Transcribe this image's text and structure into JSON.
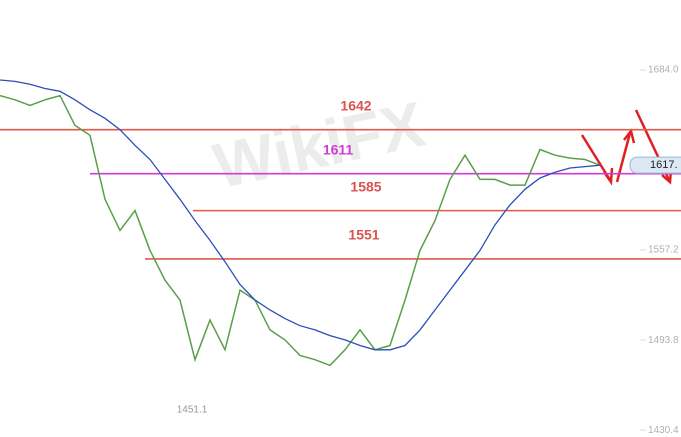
{
  "chart_data": {
    "type": "line",
    "watermark": "WikiFX",
    "categories": [
      null,
      null,
      null,
      null,
      null,
      null,
      null,
      null,
      null,
      null,
      null,
      null,
      null,
      null,
      null,
      null,
      null,
      null,
      null,
      null,
      null,
      null,
      null,
      null,
      null,
      null,
      null,
      null,
      null,
      null,
      null,
      null,
      null,
      null,
      null,
      null,
      null,
      null,
      null,
      null,
      null
    ],
    "series": [
      {
        "color": "#5a9e4a",
        "values": [
          1666,
          1663,
          1659,
          1663,
          1666,
          1645,
          1638,
          1593,
          1571,
          1585,
          1557,
          1536,
          1522,
          1480,
          1508,
          1487,
          1529,
          1522,
          1501,
          1494,
          1483,
          1480,
          1476,
          1487,
          1501,
          1487,
          1490,
          1522,
          1557,
          1578,
          1607,
          1624,
          1607,
          1607,
          1603,
          1603,
          1628,
          1624,
          1622,
          1621,
          1617
        ]
      },
      {
        "color": "#2b4fb8",
        "values": [
          1677,
          1676,
          1674,
          1671,
          1669,
          1663,
          1656,
          1650,
          1642,
          1631,
          1621,
          1607,
          1593,
          1578,
          1564,
          1549,
          1533,
          1522,
          1515,
          1509,
          1504,
          1501,
          1497,
          1494,
          1490,
          1487,
          1487,
          1490,
          1501,
          1515,
          1529,
          1543,
          1557,
          1575,
          1589,
          1600,
          1608,
          1612,
          1615,
          1616,
          1617
        ]
      }
    ],
    "levels": [
      {
        "value": 1642,
        "color": "#e0594a",
        "label_color": "#d9534f"
      },
      {
        "value": 1611,
        "color": "#d23ad8",
        "label_color": "#d23ad8"
      },
      {
        "value": 1585,
        "color": "#e0594a",
        "label_color": "#d9534f"
      },
      {
        "value": 1551,
        "color": "#e0594a",
        "label_color": "#d9534f"
      }
    ],
    "annotation": {
      "value": 1451.1
    },
    "current_price": {
      "value": 1617,
      "label": "1617."
    },
    "ylim": [
      1425.6,
      1733.3
    ],
    "yticks": [
      {
        "value": 1684.0,
        "label": "1684.0"
      },
      {
        "value": 1557.2,
        "label": "1557.2"
      },
      {
        "value": 1493.8,
        "label": "1493.8"
      },
      {
        "value": 1430.4,
        "label": "1430.4"
      }
    ]
  }
}
